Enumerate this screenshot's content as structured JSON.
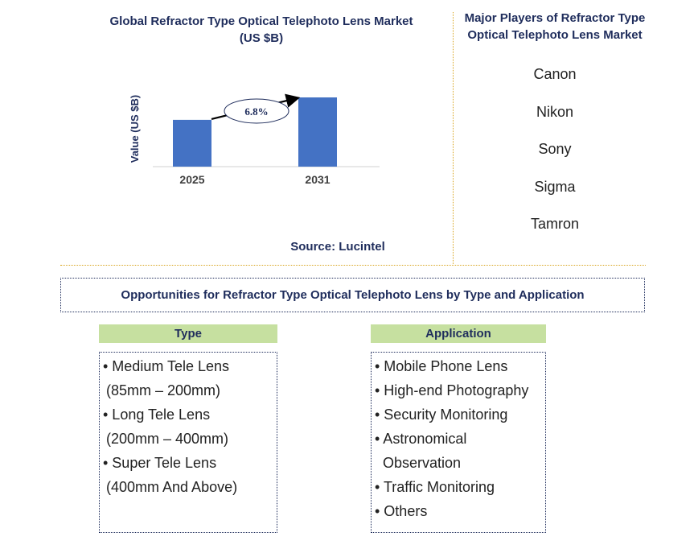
{
  "chart_data": {
    "type": "bar",
    "title": "Global Refractor Type Optical Telephoto Lens Market (US $B)",
    "ylabel": "Value (US $B)",
    "categories": [
      "2025",
      "2031"
    ],
    "values": [
      1.0,
      1.48
    ],
    "annotation": "6.8%",
    "bar_color": "#4472c4",
    "grid": false
  },
  "source": "Source: Lucintel",
  "players": {
    "title": "Major Players of Refractor Type Optical Telephoto Lens Market",
    "items": [
      "Canon",
      "Nikon",
      "Sony",
      "Sigma",
      "Tamron"
    ]
  },
  "opportunities": {
    "title": "Opportunities for Refractor Type Optical Telephoto Lens by Type and Application"
  },
  "type_col": {
    "heading": "Type",
    "lines": [
      {
        "text": "• Medium Tele Lens",
        "cont": false
      },
      {
        "text": "(85mm – 200mm)",
        "cont": true
      },
      {
        "text": "• Long Tele Lens",
        "cont": false
      },
      {
        "text": "(200mm – 400mm)",
        "cont": true
      },
      {
        "text": "• Super Tele Lens",
        "cont": false
      },
      {
        "text": "(400mm And Above)",
        "cont": true
      }
    ]
  },
  "application_col": {
    "heading": "Application",
    "lines": [
      {
        "text": "• Mobile Phone Lens",
        "cont": false
      },
      {
        "text": "• High-end Photography",
        "cont": false
      },
      {
        "text": "• Security Monitoring",
        "cont": false
      },
      {
        "text": "• Astronomical",
        "cont": false
      },
      {
        "text": "Observation",
        "cont": true
      },
      {
        "text": "• Traffic Monitoring",
        "cont": false
      },
      {
        "text": "• Others",
        "cont": false
      }
    ]
  },
  "colors": {
    "title": "#1f2d5c",
    "divider": "#d9a520",
    "header_bg": "#c6e0a0"
  }
}
